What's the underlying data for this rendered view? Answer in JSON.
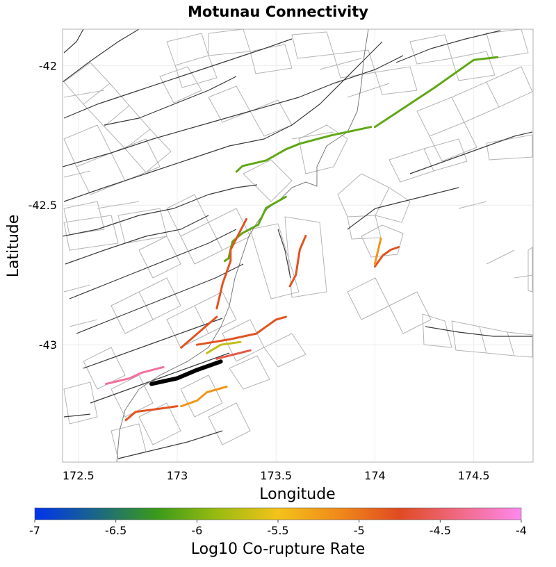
{
  "chart_data": {
    "type": "map",
    "title": "Motunau Connectivity",
    "xlabel": "Longitude",
    "ylabel": "Latitude",
    "xlim": [
      172.42,
      174.8
    ],
    "ylim": [
      -43.42,
      -41.87
    ],
    "x_ticks": [
      172.5,
      173,
      173.5,
      174,
      174.5
    ],
    "x_tick_labels": [
      "172.5",
      "173",
      "173.5",
      "174",
      "174.5"
    ],
    "y_ticks": [
      -42,
      -42.5,
      -43
    ],
    "y_tick_labels": [
      "-42",
      "-42.5",
      "-43"
    ],
    "grid": true,
    "colorbar": {
      "label": "Log10 Co-rupture Rate",
      "min": -7,
      "max": -4,
      "ticks": [
        -7,
        -6.5,
        -6,
        -5.5,
        -5,
        -4.5,
        -4
      ],
      "tick_labels": [
        "-7",
        "-6.5",
        "-6",
        "-5.5",
        "-5",
        "-4.5",
        "-4"
      ],
      "colors": [
        "#0033ee",
        "#1a6688",
        "#3a9a1a",
        "#99bb11",
        "#f4c21a",
        "#f08a1a",
        "#e04a22",
        "#f06a86",
        "#ff88ee"
      ]
    },
    "selected_section": {
      "name": "Motunau",
      "color": "#000000",
      "coords": [
        [
          172.87,
          -43.14
        ],
        [
          173.0,
          -43.12
        ],
        [
          173.1,
          -43.09
        ],
        [
          173.22,
          -43.06
        ]
      ]
    },
    "series": [
      {
        "value": -6.1,
        "coords": [
          [
            174.0,
            -42.22
          ],
          [
            174.3,
            -42.08
          ],
          [
            174.5,
            -41.98
          ],
          [
            174.62,
            -41.97
          ]
        ]
      },
      {
        "value": -6.1,
        "coords": [
          [
            173.3,
            -42.38
          ],
          [
            173.33,
            -42.36
          ],
          [
            173.45,
            -42.34
          ],
          [
            173.55,
            -42.3
          ],
          [
            173.62,
            -42.28
          ],
          [
            173.78,
            -42.25
          ],
          [
            173.98,
            -42.22
          ]
        ]
      },
      {
        "value": -6.1,
        "coords": [
          [
            173.24,
            -42.7
          ],
          [
            173.26,
            -42.69
          ],
          [
            173.28,
            -42.63
          ],
          [
            173.33,
            -42.6
          ],
          [
            173.41,
            -42.57
          ],
          [
            173.45,
            -42.51
          ],
          [
            173.55,
            -42.47
          ]
        ]
      },
      {
        "value": -5.7,
        "coords": [
          [
            173.15,
            -43.03
          ],
          [
            173.22,
            -43.0
          ],
          [
            173.32,
            -42.99
          ]
        ]
      },
      {
        "value": -4.8,
        "coords": [
          [
            173.2,
            -42.87
          ],
          [
            173.23,
            -42.78
          ],
          [
            173.27,
            -42.7
          ],
          [
            173.27,
            -42.66
          ],
          [
            173.35,
            -42.55
          ]
        ]
      },
      {
        "value": -4.8,
        "coords": [
          [
            173.57,
            -42.79
          ],
          [
            173.6,
            -42.75
          ],
          [
            173.62,
            -42.66
          ],
          [
            173.65,
            -42.61
          ]
        ]
      },
      {
        "value": -4.8,
        "coords": [
          [
            174.0,
            -42.72
          ],
          [
            174.04,
            -42.68
          ],
          [
            174.08,
            -42.66
          ],
          [
            174.12,
            -42.65
          ]
        ]
      },
      {
        "value": -5.2,
        "coords": [
          [
            174.0,
            -42.71
          ],
          [
            174.03,
            -42.62
          ]
        ]
      },
      {
        "value": -4.8,
        "coords": [
          [
            173.02,
            -43.01
          ],
          [
            173.2,
            -42.9
          ]
        ]
      },
      {
        "value": -4.8,
        "coords": [
          [
            173.1,
            -43.0
          ],
          [
            173.27,
            -42.98
          ],
          [
            173.4,
            -42.96
          ],
          [
            173.5,
            -42.91
          ],
          [
            173.55,
            -42.9
          ]
        ]
      },
      {
        "value": -4.6,
        "coords": [
          [
            173.2,
            -43.05
          ],
          [
            173.37,
            -43.02
          ]
        ]
      },
      {
        "value": -4.3,
        "coords": [
          [
            172.64,
            -43.14
          ],
          [
            172.76,
            -43.12
          ],
          [
            172.82,
            -43.1
          ],
          [
            172.93,
            -43.08
          ]
        ]
      },
      {
        "value": -5.2,
        "coords": [
          [
            173.02,
            -43.22
          ],
          [
            173.1,
            -43.2
          ],
          [
            173.15,
            -43.17
          ],
          [
            173.25,
            -43.15
          ]
        ]
      },
      {
        "value": -4.8,
        "coords": [
          [
            172.74,
            -43.27
          ],
          [
            172.79,
            -43.24
          ],
          [
            172.9,
            -43.23
          ],
          [
            173.0,
            -43.22
          ]
        ]
      }
    ]
  }
}
